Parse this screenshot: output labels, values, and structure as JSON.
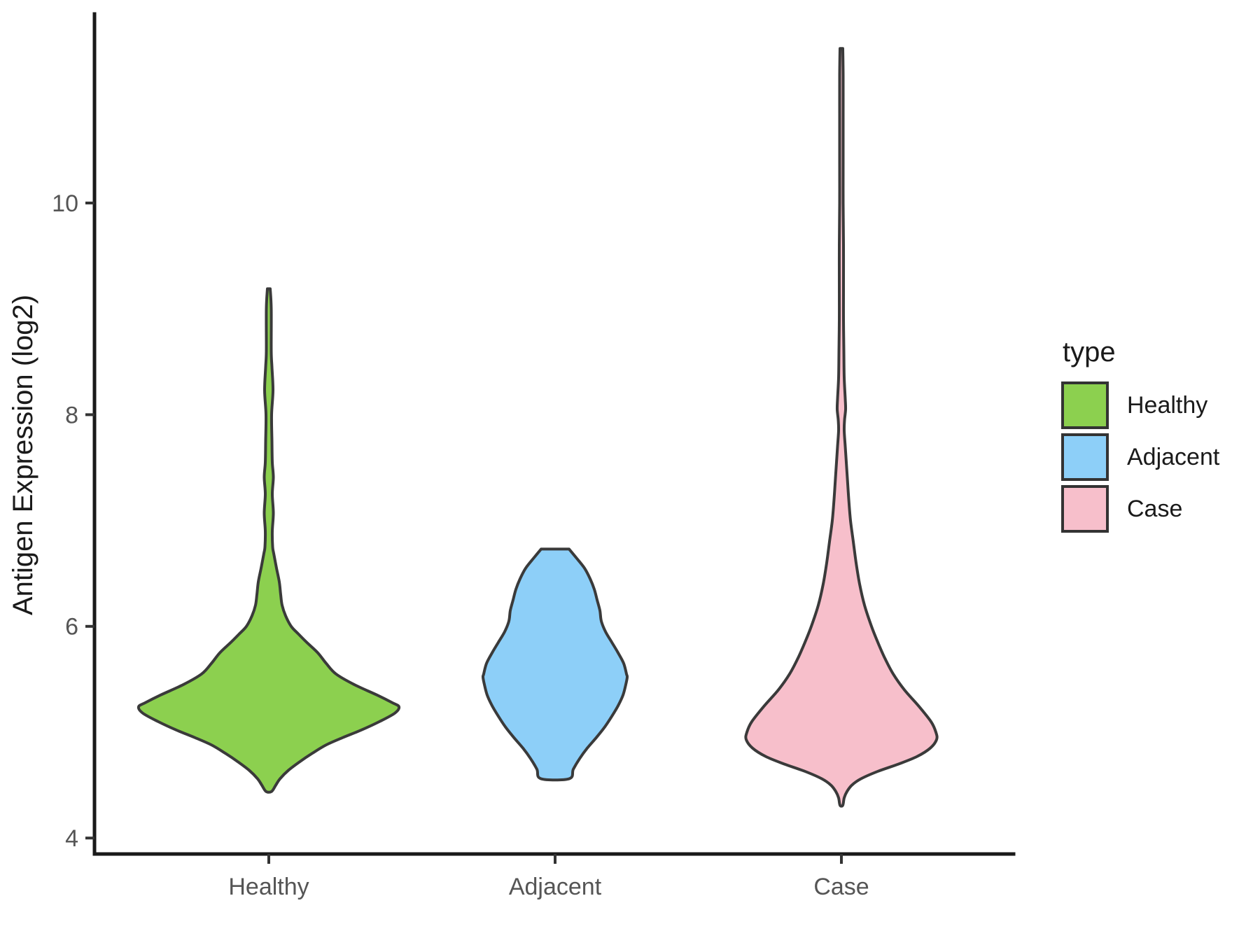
{
  "chart_data": {
    "type": "violin",
    "title": "",
    "xlabel": "",
    "ylabel": "Antigen Expression (log2)",
    "grid": false,
    "outline_color": "#3A3A3A",
    "y_axis": {
      "ticks": [
        4,
        6,
        8,
        10
      ],
      "range": [
        3.85,
        11.6
      ]
    },
    "categories": [
      "Healthy",
      "Adjacent",
      "Case"
    ],
    "legend": {
      "title": "type",
      "position": "right",
      "entries": [
        {
          "label": "Healthy",
          "color": "#8CD04F"
        },
        {
          "label": "Adjacent",
          "color": "#8DCFF8"
        },
        {
          "label": "Case",
          "color": "#F7BFCB"
        }
      ]
    },
    "series": [
      {
        "name": "Healthy",
        "color": "#8CD04F",
        "summary": {
          "min": 4.44,
          "max": 9.19,
          "widest_at": 5.24
        },
        "profile": [
          [
            9.19,
            2
          ],
          [
            9.0,
            3.5
          ],
          [
            8.6,
            3.5
          ],
          [
            8.45,
            4.5
          ],
          [
            8.23,
            6
          ],
          [
            8.0,
            4
          ],
          [
            7.75,
            4.5
          ],
          [
            7.55,
            5
          ],
          [
            7.41,
            6.5
          ],
          [
            7.25,
            5
          ],
          [
            7.07,
            6.5
          ],
          [
            6.9,
            5
          ],
          [
            6.75,
            5.5
          ],
          [
            6.69,
            7
          ],
          [
            6.55,
            11
          ],
          [
            6.42,
            15
          ],
          [
            6.3,
            17
          ],
          [
            6.2,
            19
          ],
          [
            6.1,
            24
          ],
          [
            6.0,
            32
          ],
          [
            5.93,
            42
          ],
          [
            5.85,
            54
          ],
          [
            5.75,
            70
          ],
          [
            5.65,
            82
          ],
          [
            5.55,
            96
          ],
          [
            5.45,
            122
          ],
          [
            5.35,
            155
          ],
          [
            5.28,
            176
          ],
          [
            5.24,
            186
          ],
          [
            5.18,
            180
          ],
          [
            5.1,
            158
          ],
          [
            5.02,
            132
          ],
          [
            4.95,
            106
          ],
          [
            4.88,
            82
          ],
          [
            4.8,
            62
          ],
          [
            4.72,
            44
          ],
          [
            4.64,
            28
          ],
          [
            4.56,
            16
          ],
          [
            4.5,
            10
          ],
          [
            4.44,
            4
          ]
        ]
      },
      {
        "name": "Adjacent",
        "color": "#8DCFF8",
        "summary": {
          "min": 4.56,
          "max": 6.73,
          "widest_at": 5.52
        },
        "profile": [
          [
            6.73,
            20
          ],
          [
            6.65,
            30
          ],
          [
            6.55,
            42
          ],
          [
            6.45,
            50
          ],
          [
            6.35,
            56
          ],
          [
            6.25,
            60
          ],
          [
            6.15,
            64
          ],
          [
            6.05,
            66
          ],
          [
            5.95,
            72
          ],
          [
            5.85,
            81
          ],
          [
            5.75,
            90
          ],
          [
            5.65,
            98
          ],
          [
            5.55,
            102
          ],
          [
            5.52,
            103
          ],
          [
            5.45,
            101
          ],
          [
            5.35,
            97
          ],
          [
            5.25,
            90
          ],
          [
            5.15,
            81
          ],
          [
            5.05,
            71
          ],
          [
            4.95,
            59
          ],
          [
            4.85,
            46
          ],
          [
            4.75,
            35
          ],
          [
            4.65,
            26
          ],
          [
            4.56,
            20
          ]
        ]
      },
      {
        "name": "Case",
        "color": "#F7BFCB",
        "summary": {
          "min": 4.31,
          "max": 11.46,
          "widest_at": 4.93
        },
        "profile": [
          [
            11.46,
            2
          ],
          [
            11.2,
            2.5
          ],
          [
            10.8,
            2.5
          ],
          [
            10.4,
            2.5
          ],
          [
            10.0,
            2.5
          ],
          [
            9.6,
            3
          ],
          [
            9.2,
            3
          ],
          [
            8.9,
            3
          ],
          [
            8.6,
            3.5
          ],
          [
            8.35,
            4
          ],
          [
            8.15,
            5.5
          ],
          [
            8.05,
            6
          ],
          [
            7.95,
            4.5
          ],
          [
            7.85,
            4
          ],
          [
            7.7,
            5.5
          ],
          [
            7.55,
            7
          ],
          [
            7.4,
            8.5
          ],
          [
            7.2,
            10.5
          ],
          [
            7.0,
            13
          ],
          [
            6.8,
            17
          ],
          [
            6.6,
            21
          ],
          [
            6.4,
            26
          ],
          [
            6.2,
            33
          ],
          [
            6.0,
            43
          ],
          [
            5.85,
            52
          ],
          [
            5.7,
            62
          ],
          [
            5.55,
            74
          ],
          [
            5.4,
            90
          ],
          [
            5.25,
            110
          ],
          [
            5.1,
            128
          ],
          [
            5.0,
            135
          ],
          [
            4.93,
            136
          ],
          [
            4.85,
            127
          ],
          [
            4.77,
            108
          ],
          [
            4.7,
            82
          ],
          [
            4.63,
            52
          ],
          [
            4.56,
            28
          ],
          [
            4.5,
            15
          ],
          [
            4.44,
            8
          ],
          [
            4.38,
            4
          ],
          [
            4.31,
            2
          ]
        ]
      }
    ]
  }
}
